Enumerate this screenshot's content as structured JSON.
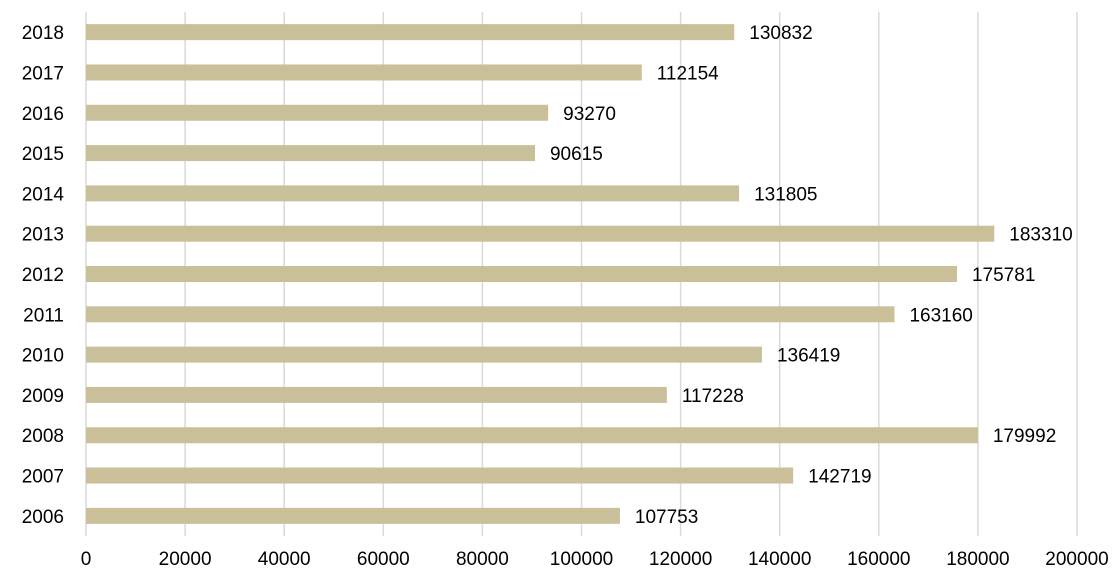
{
  "chart_data": {
    "type": "bar",
    "orientation": "horizontal",
    "categories": [
      "2006",
      "2007",
      "2008",
      "2009",
      "2010",
      "2011",
      "2012",
      "2013",
      "2014",
      "2015",
      "2016",
      "2017",
      "2018"
    ],
    "values": [
      107753,
      142719,
      179992,
      117228,
      136419,
      163160,
      175781,
      183310,
      131805,
      90615,
      93270,
      112154,
      130832
    ],
    "data_labels": [
      "107753",
      "142719",
      "179992",
      "117228",
      "136419",
      "163160",
      "175781",
      "183310",
      "131805",
      "90615",
      "93270",
      "112154",
      "130832"
    ],
    "xlim": [
      0,
      200000
    ],
    "x_ticks": [
      "0",
      "20000",
      "40000",
      "60000",
      "80000",
      "100000",
      "120000",
      "140000",
      "160000",
      "180000",
      "200000"
    ],
    "grid": "vertical",
    "legend": "none",
    "title": "",
    "xlabel": "",
    "ylabel": "",
    "colors": {
      "bar": "#c9bf98",
      "grid": "#d9d9d9",
      "text": "#000000"
    }
  }
}
